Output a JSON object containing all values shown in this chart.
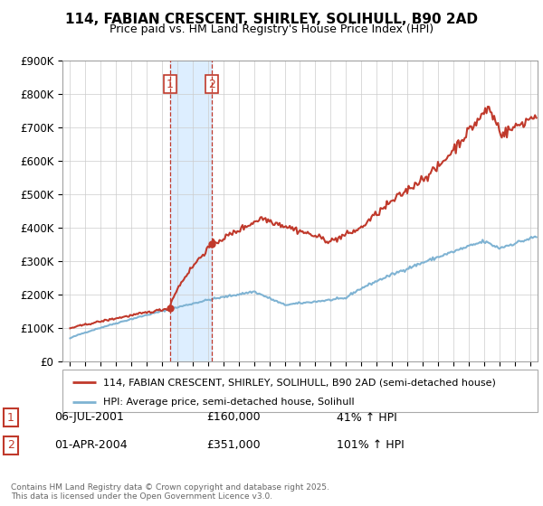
{
  "title": "114, FABIAN CRESCENT, SHIRLEY, SOLIHULL, B90 2AD",
  "subtitle": "Price paid vs. HM Land Registry's House Price Index (HPI)",
  "legend_line1": "114, FABIAN CRESCENT, SHIRLEY, SOLIHULL, B90 2AD (semi-detached house)",
  "legend_line2": "HPI: Average price, semi-detached house, Solihull",
  "transaction1_date": "06-JUL-2001",
  "transaction1_price": "£160,000",
  "transaction1_hpi": "41% ↑ HPI",
  "transaction2_date": "01-APR-2004",
  "transaction2_price": "£351,000",
  "transaction2_hpi": "101% ↑ HPI",
  "footer": "Contains HM Land Registry data © Crown copyright and database right 2025.\nThis data is licensed under the Open Government Licence v3.0.",
  "purchase1_date_num": 2001.51,
  "purchase1_price": 160000,
  "purchase2_date_num": 2004.25,
  "purchase2_price": 351000,
  "hpi_color": "#7fb3d3",
  "price_color": "#c0392b",
  "shade_color": "#ddeeff",
  "ylim": [
    0,
    900000
  ],
  "xlim_start": 1994.5,
  "xlim_end": 2025.5
}
